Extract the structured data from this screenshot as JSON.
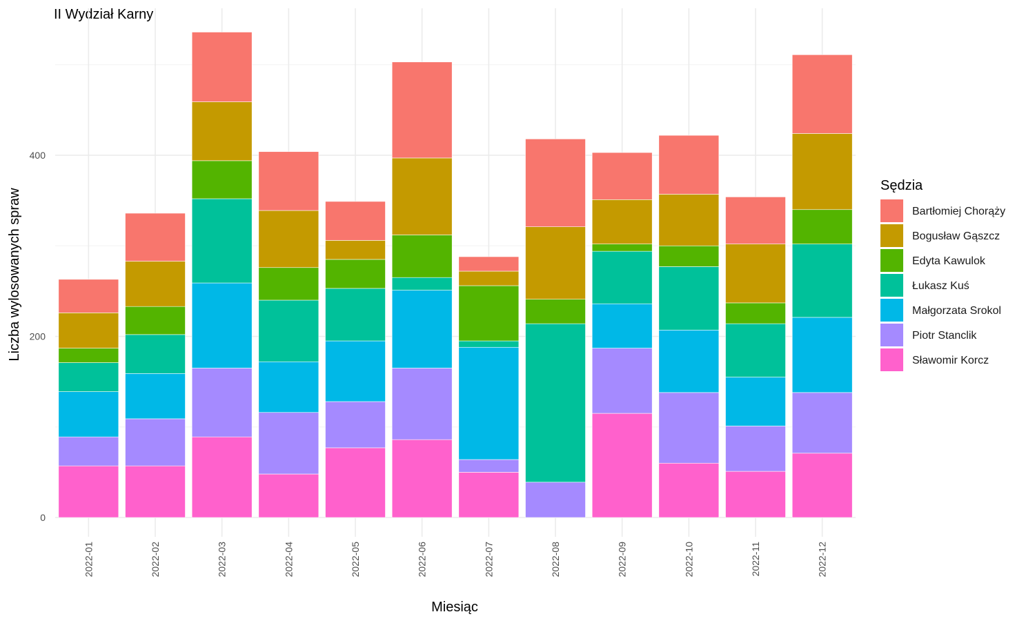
{
  "chart_data": {
    "type": "bar",
    "stacked": true,
    "title": "II Wydział Karny",
    "xlabel": "Miesiąc",
    "ylabel": "Liczba wylosowanych spraw",
    "ylim": [
      0,
      540
    ],
    "yticks": [
      0,
      200,
      400
    ],
    "grid": true,
    "legend": {
      "title": "Sędzia",
      "position": "right"
    },
    "categories": [
      "2022-01",
      "2022-02",
      "2022-03",
      "2022-04",
      "2022-05",
      "2022-06",
      "2022-07",
      "2022-08",
      "2022-09",
      "2022-10",
      "2022-11",
      "2022-12"
    ],
    "series": [
      {
        "name": "Sławomir Korcz",
        "color": "#FF61CC",
        "values": [
          57,
          57,
          89,
          48,
          77,
          86,
          50,
          0,
          115,
          60,
          51,
          71
        ]
      },
      {
        "name": "Piotr Stanclik",
        "color": "#A58AFF",
        "values": [
          32,
          52,
          76,
          68,
          51,
          79,
          14,
          39,
          72,
          78,
          50,
          67
        ]
      },
      {
        "name": "Małgorzata Srokol",
        "color": "#00B8E7",
        "values": [
          50,
          50,
          94,
          56,
          67,
          86,
          124,
          0,
          49,
          69,
          54,
          83
        ]
      },
      {
        "name": "Łukasz Kuś",
        "color": "#00C19A",
        "values": [
          32,
          43,
          93,
          68,
          58,
          14,
          7,
          175,
          58,
          70,
          59,
          81
        ]
      },
      {
        "name": "Edyta Kawulok",
        "color": "#53B400",
        "values": [
          16,
          31,
          42,
          36,
          32,
          47,
          61,
          27,
          8,
          23,
          23,
          38
        ]
      },
      {
        "name": "Bogusław Gąszcz",
        "color": "#C49A00",
        "values": [
          39,
          50,
          65,
          63,
          21,
          85,
          16,
          80,
          49,
          57,
          65,
          84
        ]
      },
      {
        "name": "Bartłomiej Chorąży",
        "color": "#F8766D",
        "values": [
          37,
          53,
          77,
          65,
          43,
          106,
          16,
          97,
          52,
          65,
          52,
          87
        ]
      }
    ]
  }
}
